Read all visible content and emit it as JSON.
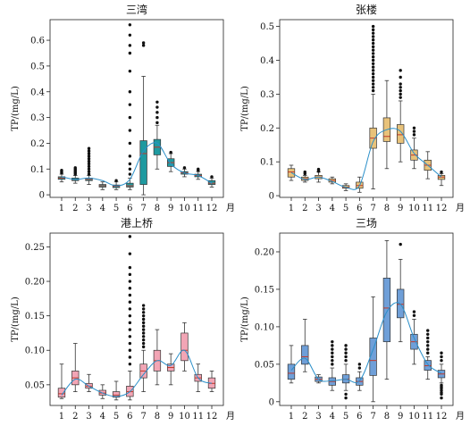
{
  "chart_data": [
    {
      "type": "box",
      "title": "三湾",
      "ylabel": "TP/(mg/L)",
      "x_unit": "月",
      "categories": [
        1,
        2,
        3,
        4,
        5,
        6,
        7,
        8,
        9,
        10,
        11,
        12
      ],
      "ylim": [
        -0.01,
        0.68
      ],
      "yticks": [
        0,
        0.1,
        0.2,
        0.3,
        0.4,
        0.5,
        0.6
      ],
      "ytick_labels": [
        "0",
        "0.1",
        "0.2",
        "0.3",
        "0.4",
        "0.5",
        "0.6"
      ],
      "color": "#1f9aa0",
      "trend": [
        0.07,
        0.06,
        0.065,
        0.055,
        0.035,
        0.06,
        0.17,
        0.2,
        0.12,
        0.085,
        0.075,
        0.045
      ],
      "boxes": [
        {
          "x": 1,
          "wl": 0.05,
          "q1": 0.06,
          "med": 0.065,
          "q3": 0.07,
          "wh": 0.08,
          "out": [
            0.085,
            0.09,
            0.095
          ]
        },
        {
          "x": 2,
          "wl": 0.045,
          "q1": 0.055,
          "med": 0.06,
          "q3": 0.065,
          "wh": 0.075,
          "out": [
            0.08,
            0.085,
            0.09,
            0.095,
            0.1,
            0.105
          ]
        },
        {
          "x": 3,
          "wl": 0.04,
          "q1": 0.055,
          "med": 0.06,
          "q3": 0.065,
          "wh": 0.075,
          "out": [
            0.08,
            0.09,
            0.1,
            0.11,
            0.12,
            0.13,
            0.14,
            0.15,
            0.16,
            0.17,
            0.18
          ]
        },
        {
          "x": 4,
          "wl": 0.02,
          "q1": 0.03,
          "med": 0.035,
          "q3": 0.04,
          "wh": 0.05,
          "out": []
        },
        {
          "x": 5,
          "wl": 0.02,
          "q1": 0.028,
          "med": 0.033,
          "q3": 0.038,
          "wh": 0.05,
          "out": [
            0.055
          ]
        },
        {
          "x": 6,
          "wl": 0.02,
          "q1": 0.03,
          "med": 0.035,
          "q3": 0.045,
          "wh": 0.065,
          "out": [
            0.08,
            0.1,
            0.12,
            0.15,
            0.2,
            0.25,
            0.3,
            0.35,
            0.4,
            0.48,
            0.55,
            0.58,
            0.62,
            0.66
          ]
        },
        {
          "x": 7,
          "wl": 0.0,
          "q1": 0.04,
          "med": 0.16,
          "q3": 0.21,
          "wh": 0.46,
          "out": [
            0.58,
            0.59
          ]
        },
        {
          "x": 8,
          "wl": 0.1,
          "q1": 0.155,
          "med": 0.185,
          "q3": 0.215,
          "wh": 0.27,
          "out": [
            0.28,
            0.3,
            0.32,
            0.34,
            0.36
          ]
        },
        {
          "x": 9,
          "wl": 0.09,
          "q1": 0.11,
          "med": 0.125,
          "q3": 0.14,
          "wh": 0.16,
          "out": [
            0.165
          ]
        },
        {
          "x": 10,
          "wl": 0.07,
          "q1": 0.08,
          "med": 0.085,
          "q3": 0.09,
          "wh": 0.1,
          "out": [
            0.105
          ]
        },
        {
          "x": 11,
          "wl": 0.06,
          "q1": 0.07,
          "med": 0.075,
          "q3": 0.08,
          "wh": 0.09,
          "out": [
            0.095,
            0.1
          ]
        },
        {
          "x": 12,
          "wl": 0.03,
          "q1": 0.04,
          "med": 0.045,
          "q3": 0.055,
          "wh": 0.065,
          "out": [
            0.07
          ]
        }
      ]
    },
    {
      "type": "box",
      "title": "张楼",
      "ylabel": "TP/(mg/L)",
      "x_unit": "月",
      "categories": [
        1,
        2,
        3,
        4,
        5,
        6,
        7,
        8,
        9,
        10,
        11,
        12
      ],
      "ylim": [
        -0.005,
        0.52
      ],
      "yticks": [
        0,
        0.1,
        0.2,
        0.3,
        0.4,
        0.5
      ],
      "ytick_labels": [
        "0",
        "0.1",
        "0.2",
        "0.3",
        "0.4",
        "0.5"
      ],
      "color": "#e8c27a",
      "trend": [
        0.068,
        0.048,
        0.055,
        0.042,
        0.025,
        0.03,
        0.16,
        0.195,
        0.19,
        0.125,
        0.09,
        0.055
      ],
      "boxes": [
        {
          "x": 1,
          "wl": 0.045,
          "q1": 0.055,
          "med": 0.07,
          "q3": 0.08,
          "wh": 0.09,
          "out": []
        },
        {
          "x": 2,
          "wl": 0.04,
          "q1": 0.045,
          "med": 0.05,
          "q3": 0.055,
          "wh": 0.06,
          "out": [
            0.065,
            0.07
          ]
        },
        {
          "x": 3,
          "wl": 0.04,
          "q1": 0.05,
          "med": 0.055,
          "q3": 0.06,
          "wh": 0.07,
          "out": [
            0.072,
            0.075,
            0.078
          ]
        },
        {
          "x": 4,
          "wl": 0.035,
          "q1": 0.04,
          "med": 0.045,
          "q3": 0.05,
          "wh": 0.055,
          "out": []
        },
        {
          "x": 5,
          "wl": 0.015,
          "q1": 0.022,
          "med": 0.025,
          "q3": 0.03,
          "wh": 0.035,
          "out": []
        },
        {
          "x": 6,
          "wl": 0.01,
          "q1": 0.022,
          "med": 0.03,
          "q3": 0.04,
          "wh": 0.055,
          "out": []
        },
        {
          "x": 7,
          "wl": 0.02,
          "q1": 0.14,
          "med": 0.17,
          "q3": 0.2,
          "wh": 0.3,
          "out": [
            0.31,
            0.32,
            0.33,
            0.34,
            0.35,
            0.36,
            0.37,
            0.38,
            0.39,
            0.4,
            0.41,
            0.42,
            0.43,
            0.44,
            0.45,
            0.46,
            0.47,
            0.48,
            0.49,
            0.5
          ]
        },
        {
          "x": 8,
          "wl": 0.08,
          "q1": 0.16,
          "med": 0.175,
          "q3": 0.23,
          "wh": 0.34,
          "out": []
        },
        {
          "x": 9,
          "wl": 0.1,
          "q1": 0.155,
          "med": 0.18,
          "q3": 0.21,
          "wh": 0.28,
          "out": [
            0.29,
            0.3,
            0.31,
            0.32,
            0.33,
            0.35,
            0.37
          ]
        },
        {
          "x": 10,
          "wl": 0.08,
          "q1": 0.105,
          "med": 0.12,
          "q3": 0.135,
          "wh": 0.17,
          "out": [
            0.18,
            0.19,
            0.2
          ]
        },
        {
          "x": 11,
          "wl": 0.05,
          "q1": 0.075,
          "med": 0.09,
          "q3": 0.105,
          "wh": 0.13,
          "out": []
        },
        {
          "x": 12,
          "wl": 0.03,
          "q1": 0.048,
          "med": 0.055,
          "q3": 0.06,
          "wh": 0.065,
          "out": [
            0.07
          ]
        }
      ]
    },
    {
      "type": "box",
      "title": "港上桥",
      "ylabel": "TP/(mg/L)",
      "x_unit": "月",
      "categories": [
        1,
        2,
        3,
        4,
        5,
        6,
        7,
        8,
        9,
        10,
        11,
        12
      ],
      "ylim": [
        0.02,
        0.27
      ],
      "yticks": [
        0.05,
        0.1,
        0.15,
        0.2,
        0.25
      ],
      "ytick_labels": [
        "0.05",
        "0.10",
        "0.15",
        "0.20",
        "0.25"
      ],
      "color": "#f2a5b5",
      "trend": [
        0.035,
        0.058,
        0.048,
        0.038,
        0.033,
        0.04,
        0.065,
        0.085,
        0.078,
        0.1,
        0.06,
        0.052
      ],
      "boxes": [
        {
          "x": 1,
          "wl": 0.03,
          "q1": 0.032,
          "med": 0.037,
          "q3": 0.045,
          "wh": 0.08,
          "out": []
        },
        {
          "x": 2,
          "wl": 0.04,
          "q1": 0.05,
          "med": 0.06,
          "q3": 0.07,
          "wh": 0.11,
          "out": []
        },
        {
          "x": 3,
          "wl": 0.04,
          "q1": 0.045,
          "med": 0.048,
          "q3": 0.052,
          "wh": 0.065,
          "out": []
        },
        {
          "x": 4,
          "wl": 0.03,
          "q1": 0.035,
          "med": 0.038,
          "q3": 0.042,
          "wh": 0.05,
          "out": []
        },
        {
          "x": 5,
          "wl": 0.028,
          "q1": 0.032,
          "med": 0.035,
          "q3": 0.04,
          "wh": 0.055,
          "out": []
        },
        {
          "x": 6,
          "wl": 0.028,
          "q1": 0.033,
          "med": 0.04,
          "q3": 0.048,
          "wh": 0.07,
          "out": [
            0.08,
            0.09,
            0.1,
            0.11,
            0.12,
            0.13,
            0.14,
            0.15,
            0.16,
            0.17,
            0.18,
            0.19,
            0.2,
            0.21,
            0.22,
            0.24,
            0.265
          ]
        },
        {
          "x": 7,
          "wl": 0.04,
          "q1": 0.06,
          "med": 0.07,
          "q3": 0.08,
          "wh": 0.1,
          "out": [
            0.105,
            0.11,
            0.115,
            0.12,
            0.125,
            0.13,
            0.135,
            0.14,
            0.145,
            0.15,
            0.155,
            0.16,
            0.165
          ]
        },
        {
          "x": 8,
          "wl": 0.05,
          "q1": 0.07,
          "med": 0.085,
          "q3": 0.1,
          "wh": 0.13,
          "out": []
        },
        {
          "x": 9,
          "wl": 0.05,
          "q1": 0.07,
          "med": 0.075,
          "q3": 0.08,
          "wh": 0.095,
          "out": []
        },
        {
          "x": 10,
          "wl": 0.07,
          "q1": 0.085,
          "med": 0.1,
          "q3": 0.125,
          "wh": 0.14,
          "out": []
        },
        {
          "x": 11,
          "wl": 0.04,
          "q1": 0.055,
          "med": 0.06,
          "q3": 0.065,
          "wh": 0.08,
          "out": []
        },
        {
          "x": 12,
          "wl": 0.04,
          "q1": 0.045,
          "med": 0.052,
          "q3": 0.06,
          "wh": 0.07,
          "out": []
        }
      ]
    },
    {
      "type": "box",
      "title": "三场",
      "ylabel": "TP/(mg/L)",
      "x_unit": "月",
      "categories": [
        1,
        2,
        3,
        4,
        5,
        6,
        7,
        8,
        9,
        10,
        11,
        12
      ],
      "ylim": [
        -0.005,
        0.225
      ],
      "yticks": [
        0,
        0.05,
        0.1,
        0.15,
        0.2
      ],
      "ytick_labels": [
        "0",
        "0.05",
        "0.10",
        "0.15",
        "0.20"
      ],
      "color": "#6f9fd8",
      "trend": [
        0.042,
        0.058,
        0.03,
        0.028,
        0.03,
        0.028,
        0.07,
        0.12,
        0.13,
        0.085,
        0.05,
        0.038
      ],
      "boxes": [
        {
          "x": 1,
          "wl": 0.025,
          "q1": 0.03,
          "med": 0.038,
          "q3": 0.05,
          "wh": 0.075,
          "out": []
        },
        {
          "x": 2,
          "wl": 0.04,
          "q1": 0.05,
          "med": 0.06,
          "q3": 0.075,
          "wh": 0.11,
          "out": []
        },
        {
          "x": 3,
          "wl": 0.025,
          "q1": 0.027,
          "med": 0.03,
          "q3": 0.033,
          "wh": 0.036,
          "out": []
        },
        {
          "x": 4,
          "wl": 0.015,
          "q1": 0.022,
          "med": 0.027,
          "q3": 0.032,
          "wh": 0.045,
          "out": [
            0.05,
            0.055,
            0.06,
            0.065,
            0.07,
            0.075,
            0.08
          ]
        },
        {
          "x": 5,
          "wl": 0.015,
          "q1": 0.025,
          "med": 0.03,
          "q3": 0.036,
          "wh": 0.05,
          "out": [
            0.005,
            0.01,
            0.055,
            0.06,
            0.065,
            0.07,
            0.075
          ]
        },
        {
          "x": 6,
          "wl": 0.015,
          "q1": 0.022,
          "med": 0.027,
          "q3": 0.032,
          "wh": 0.04,
          "out": [
            0.045,
            0.05
          ]
        },
        {
          "x": 7,
          "wl": 0.0,
          "q1": 0.035,
          "med": 0.055,
          "q3": 0.085,
          "wh": 0.14,
          "out": []
        },
        {
          "x": 8,
          "wl": 0.03,
          "q1": 0.08,
          "med": 0.125,
          "q3": 0.165,
          "wh": 0.215,
          "out": []
        },
        {
          "x": 9,
          "wl": 0.08,
          "q1": 0.112,
          "med": 0.13,
          "q3": 0.15,
          "wh": 0.19,
          "out": [
            0.21
          ]
        },
        {
          "x": 10,
          "wl": 0.05,
          "q1": 0.07,
          "med": 0.08,
          "q3": 0.09,
          "wh": 0.11,
          "out": [
            0.115,
            0.12
          ]
        },
        {
          "x": 11,
          "wl": 0.03,
          "q1": 0.042,
          "med": 0.048,
          "q3": 0.055,
          "wh": 0.06,
          "out": [
            0.065,
            0.07,
            0.075,
            0.08,
            0.085,
            0.09,
            0.095
          ]
        },
        {
          "x": 12,
          "wl": 0.025,
          "q1": 0.032,
          "med": 0.037,
          "q3": 0.042,
          "wh": 0.05,
          "out": [
            0.005,
            0.01,
            0.012,
            0.015,
            0.018,
            0.02,
            0.022,
            0.055,
            0.06,
            0.065
          ]
        }
      ]
    }
  ]
}
